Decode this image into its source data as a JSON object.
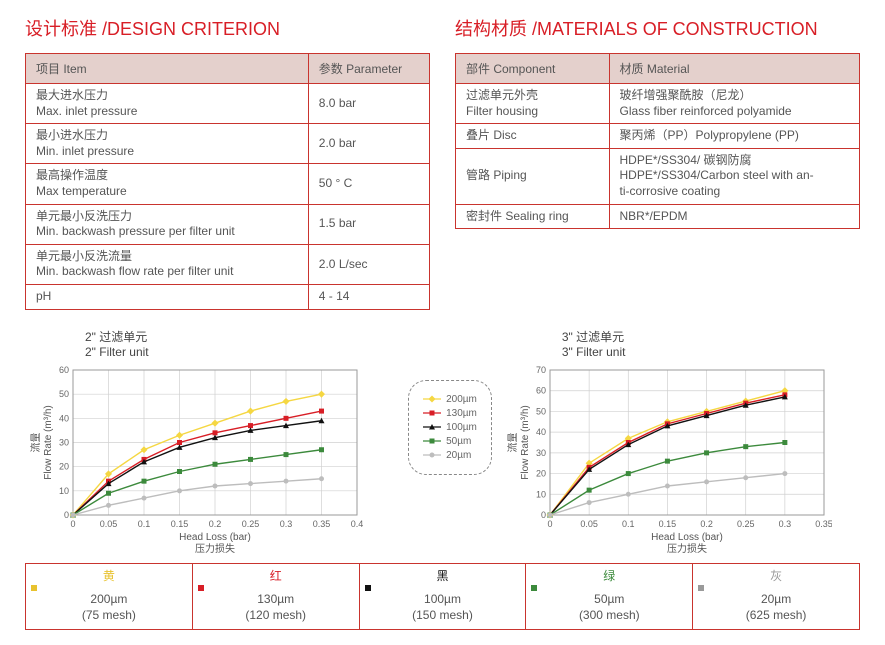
{
  "left": {
    "title": "设计标准 /DESIGN CRITERION",
    "head_item": "项目 Item",
    "head_param": "参数 Parameter",
    "rows": [
      {
        "item": "最大进水压力\nMax. inlet pressure",
        "val": "8.0 bar"
      },
      {
        "item": "最小进水压力\nMin. inlet pressure",
        "val": "2.0 bar"
      },
      {
        "item": "最高操作温度\nMax temperature",
        "val": "50 ° C"
      },
      {
        "item": "单元最小反洗压力\nMin. backwash pressure per filter unit",
        "val": "1.5 bar"
      },
      {
        "item": "单元最小反洗流量\nMin. backwash flow rate per filter unit",
        "val": "2.0 L/sec"
      },
      {
        "item": "pH",
        "val": "4 - 14"
      }
    ]
  },
  "right": {
    "title": "结构材质 /MATERIALS OF CONSTRUCTION",
    "head_comp": "部件 Component",
    "head_mat": "材质 Material",
    "rows": [
      {
        "comp": "过滤单元外壳\nFilter housing",
        "mat": "玻纤增强聚酰胺（尼龙）\nGlass fiber reinforced polyamide"
      },
      {
        "comp": "叠片 Disc",
        "mat": "聚丙烯（PP）Polypropylene (PP)"
      },
      {
        "comp": "管路 Piping",
        "mat": "HDPE*/SS304/ 碳钢防腐\nHDPE*/SS304/Carbon steel with an-\nti-corrosive coating"
      },
      {
        "comp": "密封件 Sealing ring",
        "mat": "NBR*/EPDM"
      }
    ]
  },
  "chart_common": {
    "xlabel_en": "Head Loss (bar)",
    "xlabel_cn": "压力损失",
    "ylabel_en": "Flow Rate (m³/h)",
    "ylabel_cn": "流量",
    "grid_color": "#d0d0d0",
    "axis_color": "#9a9a9a",
    "tick_fontsize": 9,
    "label_fontsize": 10,
    "background": "#ffffff",
    "series_order": [
      "s200",
      "s130",
      "s100",
      "s50",
      "s20"
    ]
  },
  "chart2": {
    "title": "2\"  过滤单元\n2\"  Filter unit",
    "xlim": [
      0,
      0.4
    ],
    "xtick_step": 0.05,
    "ylim": [
      0,
      60
    ],
    "ytick_step": 10,
    "series": {
      "s200": {
        "color": "#f5d742",
        "marker": "diamond",
        "pts": [
          [
            0,
            0
          ],
          [
            0.05,
            17
          ],
          [
            0.1,
            27
          ],
          [
            0.15,
            33
          ],
          [
            0.2,
            38
          ],
          [
            0.25,
            43
          ],
          [
            0.3,
            47
          ],
          [
            0.35,
            50
          ]
        ]
      },
      "s130": {
        "color": "#d81e26",
        "marker": "square",
        "pts": [
          [
            0,
            0
          ],
          [
            0.05,
            14
          ],
          [
            0.1,
            23
          ],
          [
            0.15,
            30
          ],
          [
            0.2,
            34
          ],
          [
            0.25,
            37
          ],
          [
            0.3,
            40
          ],
          [
            0.35,
            43
          ]
        ]
      },
      "s100": {
        "color": "#111111",
        "marker": "triangle",
        "pts": [
          [
            0,
            0
          ],
          [
            0.05,
            13
          ],
          [
            0.1,
            22
          ],
          [
            0.15,
            28
          ],
          [
            0.2,
            32
          ],
          [
            0.25,
            35
          ],
          [
            0.3,
            37
          ],
          [
            0.35,
            39
          ]
        ]
      },
      "s50": {
        "color": "#3c8a3c",
        "marker": "square",
        "pts": [
          [
            0,
            0
          ],
          [
            0.05,
            9
          ],
          [
            0.1,
            14
          ],
          [
            0.15,
            18
          ],
          [
            0.2,
            21
          ],
          [
            0.25,
            23
          ],
          [
            0.3,
            25
          ],
          [
            0.35,
            27
          ]
        ]
      },
      "s20": {
        "color": "#bdbdbd",
        "marker": "circle",
        "pts": [
          [
            0,
            0
          ],
          [
            0.05,
            4
          ],
          [
            0.1,
            7
          ],
          [
            0.15,
            10
          ],
          [
            0.2,
            12
          ],
          [
            0.25,
            13
          ],
          [
            0.3,
            14
          ],
          [
            0.35,
            15
          ]
        ]
      }
    }
  },
  "chart3": {
    "title": "3\"  过滤单元\n3\"  Filter unit",
    "xlim": [
      0,
      0.35
    ],
    "xtick_step": 0.05,
    "ylim": [
      0,
      70
    ],
    "ytick_step": 10,
    "series": {
      "s200": {
        "color": "#f5d742",
        "marker": "diamond",
        "pts": [
          [
            0,
            0
          ],
          [
            0.05,
            25
          ],
          [
            0.1,
            37
          ],
          [
            0.15,
            45
          ],
          [
            0.2,
            50
          ],
          [
            0.25,
            55
          ],
          [
            0.3,
            60
          ]
        ]
      },
      "s130": {
        "color": "#d81e26",
        "marker": "square",
        "pts": [
          [
            0,
            0
          ],
          [
            0.05,
            23
          ],
          [
            0.1,
            35
          ],
          [
            0.15,
            44
          ],
          [
            0.2,
            49
          ],
          [
            0.25,
            54
          ],
          [
            0.3,
            58
          ]
        ]
      },
      "s100": {
        "color": "#111111",
        "marker": "triangle",
        "pts": [
          [
            0,
            0
          ],
          [
            0.05,
            22
          ],
          [
            0.1,
            34
          ],
          [
            0.15,
            43
          ],
          [
            0.2,
            48
          ],
          [
            0.25,
            53
          ],
          [
            0.3,
            57
          ]
        ]
      },
      "s50": {
        "color": "#3c8a3c",
        "marker": "square",
        "pts": [
          [
            0,
            0
          ],
          [
            0.05,
            12
          ],
          [
            0.1,
            20
          ],
          [
            0.15,
            26
          ],
          [
            0.2,
            30
          ],
          [
            0.25,
            33
          ],
          [
            0.3,
            35
          ]
        ]
      },
      "s20": {
        "color": "#bdbdbd",
        "marker": "circle",
        "pts": [
          [
            0,
            0
          ],
          [
            0.05,
            6
          ],
          [
            0.1,
            10
          ],
          [
            0.15,
            14
          ],
          [
            0.2,
            16
          ],
          [
            0.25,
            18
          ],
          [
            0.3,
            20
          ]
        ]
      }
    }
  },
  "legend": {
    "items": [
      {
        "key": "s200",
        "label": "200µm",
        "color": "#f5d742",
        "marker": "diamond"
      },
      {
        "key": "s130",
        "label": "130µm",
        "color": "#d81e26",
        "marker": "square"
      },
      {
        "key": "s100",
        "label": "100µm",
        "color": "#111111",
        "marker": "triangle"
      },
      {
        "key": "s50",
        "label": "50µm",
        "color": "#3c8a3c",
        "marker": "square"
      },
      {
        "key": "s20",
        "label": "20µm",
        "color": "#bdbdbd",
        "marker": "circle"
      }
    ]
  },
  "bottom_legend": [
    {
      "color_cn": "黄",
      "color_hex": "#e8c22e",
      "label": "200µm",
      "mesh": "(75 mesh)"
    },
    {
      "color_cn": "红",
      "color_hex": "#d81e26",
      "label": "130µm",
      "mesh": "(120 mesh)"
    },
    {
      "color_cn": "黑",
      "color_hex": "#111111",
      "label": "100µm",
      "mesh": "(150 mesh)"
    },
    {
      "color_cn": "绿",
      "color_hex": "#3c8a3c",
      "label": "50µm",
      "mesh": "(300 mesh)"
    },
    {
      "color_cn": "灰",
      "color_hex": "#9a9a9a",
      "label": "20µm",
      "mesh": "(625 mesh)"
    }
  ]
}
